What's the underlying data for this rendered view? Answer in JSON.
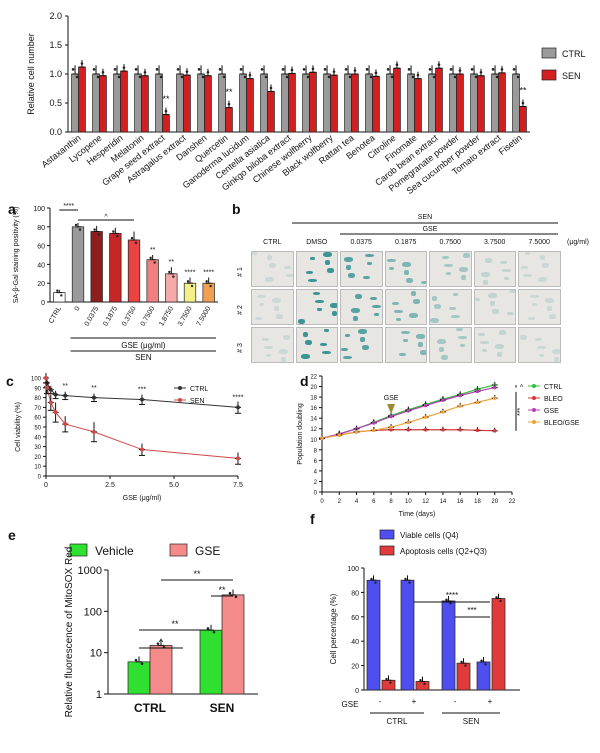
{
  "colors": {
    "ctrl": "#9a9a9a",
    "sen": "#d22020",
    "green": "#2fbf3a",
    "red": "#d9343a",
    "magenta": "#b43fb4",
    "orange": "#f0a23a",
    "vehicle": "#30e030",
    "gse": "#f48a8a",
    "blue": "#4f4ff0",
    "apop": "#e03b3b",
    "teal": "#3aa6a0"
  },
  "chart_data": [
    {
      "panel": "top",
      "type": "bar",
      "ylabel": "Relative cell number",
      "ylim": [
        0,
        2.0
      ],
      "yticks": [
        "0.0",
        "0.5",
        "1.0",
        "1.5",
        "2.0"
      ],
      "legend": [
        "CTRL",
        "SEN"
      ],
      "categories": [
        "Astaxanthin",
        "Lycopene",
        "Hesperidin",
        "Melatonin",
        "Grape seed extract",
        "Astragalus extract",
        "Danshen",
        "Quercetin",
        "Ganoderma lucidum",
        "Centella asiatica",
        "Ginkgo biloba extract",
        "Chinese wolfberry",
        "Black wolfberry",
        "Rattan tea",
        "Benotea",
        "Citroline",
        "Finomate",
        "Carob bean extract",
        "Pomegranate powder",
        "Sea cucumber powder",
        "Tomato extract",
        "Fisetin"
      ],
      "series": [
        {
          "name": "CTRL",
          "values": [
            1.0,
            1.0,
            1.0,
            1.0,
            1.0,
            1.0,
            1.0,
            1.0,
            1.0,
            1.0,
            1.0,
            1.0,
            1.0,
            1.0,
            1.0,
            1.0,
            1.0,
            1.0,
            1.0,
            1.0,
            1.0,
            1.0
          ]
        },
        {
          "name": "SEN",
          "values": [
            1.12,
            0.97,
            1.05,
            0.97,
            0.3,
            0.98,
            0.97,
            0.42,
            0.92,
            0.7,
            1.01,
            1.03,
            0.98,
            1.0,
            0.96,
            1.1,
            0.92,
            1.1,
            1.0,
            0.97,
            1.02,
            0.44
          ]
        }
      ],
      "annotations": [
        {
          "index": 4,
          "text": "**"
        },
        {
          "index": 7,
          "text": "**"
        },
        {
          "index": 21,
          "text": "**"
        }
      ]
    },
    {
      "panel": "a",
      "type": "bar",
      "ylabel": "SA-β-Gal staining positivity (%)",
      "ylim": [
        0,
        100
      ],
      "yticks": [
        "0",
        "20",
        "40",
        "60",
        "80",
        "100"
      ],
      "categories": [
        "CTRL",
        "0",
        "0.0375",
        "0.1875",
        "0.3750",
        "0.7500",
        "1.8750",
        "3.7500",
        "7.5000"
      ],
      "values": [
        10,
        80,
        75,
        73,
        66,
        45,
        30,
        20,
        20
      ],
      "errors": [
        3,
        4,
        6,
        6,
        9,
        5,
        7,
        6,
        6
      ],
      "colors": [
        "#ffffff",
        "#9a9a9a",
        "#8f1f1f",
        "#c62626",
        "#ea4343",
        "#f07f7f",
        "#f5aaaa",
        "#f3f08a",
        "#f0a050"
      ],
      "stars": [
        "",
        "",
        "",
        "",
        "",
        "**",
        "**",
        "****",
        "****"
      ],
      "bracket_labels": [
        "****",
        "^"
      ],
      "xlabel": "GSE (μg/ml)",
      "group_label": "SEN"
    },
    {
      "panel": "c",
      "type": "line",
      "xlabel": "GSE (μg/ml)",
      "ylabel": "Cell viability (%)",
      "xlim": [
        0,
        7.5
      ],
      "ylim": [
        0,
        100
      ],
      "xticks": [
        "0",
        "2.5",
        "5.0",
        "7.5"
      ],
      "yticks": [
        "0",
        "10",
        "20",
        "30",
        "40",
        "50",
        "60",
        "70",
        "80",
        "90",
        "100"
      ],
      "series": [
        {
          "name": "CTRL",
          "color": "#333333",
          "x": [
            0,
            0.0375,
            0.1875,
            0.375,
            0.75,
            1.875,
            3.75,
            7.5
          ],
          "y": [
            100,
            95,
            88,
            83,
            82,
            80,
            78,
            70
          ],
          "err": [
            5,
            4,
            4,
            4,
            4,
            4,
            5,
            6
          ]
        },
        {
          "name": "SEN",
          "color": "#d04848",
          "x": [
            0,
            0.0375,
            0.1875,
            0.375,
            0.75,
            1.875,
            3.75,
            7.5
          ],
          "y": [
            100,
            90,
            75,
            65,
            53,
            45,
            27,
            18
          ],
          "err": [
            5,
            6,
            8,
            10,
            8,
            10,
            6,
            6
          ]
        }
      ],
      "stars": [
        {
          "x": 0.75,
          "text": "**"
        },
        {
          "x": 1.875,
          "text": "**"
        },
        {
          "x": 3.75,
          "text": "***"
        },
        {
          "x": 7.5,
          "text": "****"
        }
      ]
    },
    {
      "panel": "d",
      "type": "line",
      "xlabel": "Time (days)",
      "ylabel": "Population doubling",
      "xlim": [
        0,
        22
      ],
      "ylim": [
        0,
        22
      ],
      "xticks": [
        "0",
        "2",
        "4",
        "6",
        "8",
        "10",
        "12",
        "14",
        "16",
        "18",
        "20",
        "22"
      ],
      "yticks": [
        "0",
        "2",
        "4",
        "6",
        "8",
        "10",
        "12",
        "14",
        "16",
        "18",
        "20",
        "22"
      ],
      "series": [
        {
          "name": "CTRL",
          "color": "#2fbf3a",
          "x": [
            0,
            2,
            4,
            6,
            8,
            10,
            12,
            14,
            16,
            18,
            20
          ],
          "y": [
            10.2,
            11.0,
            12.0,
            13.2,
            14.5,
            15.6,
            16.6,
            17.6,
            18.5,
            19.5,
            20.3
          ]
        },
        {
          "name": "BLEO",
          "color": "#d9343a",
          "x": [
            0,
            2,
            4,
            6,
            8,
            10,
            12,
            14,
            16,
            18,
            20
          ],
          "y": [
            10.2,
            10.8,
            11.4,
            11.7,
            11.8,
            11.8,
            11.8,
            11.8,
            11.8,
            11.7,
            11.6
          ]
        },
        {
          "name": "GSE",
          "color": "#b43fb4",
          "x": [
            0,
            2,
            4,
            6,
            8,
            10,
            12,
            14,
            16,
            18,
            20
          ],
          "y": [
            10.2,
            11.0,
            12.0,
            13.1,
            14.3,
            15.4,
            16.4,
            17.4,
            18.3,
            19.1,
            19.8
          ]
        },
        {
          "name": "BLEO/GSE",
          "color": "#f0a23a",
          "x": [
            0,
            2,
            4,
            6,
            8,
            10,
            12,
            14,
            16,
            18,
            20
          ],
          "y": [
            10.2,
            10.8,
            11.4,
            11.7,
            12.3,
            13.2,
            14.2,
            15.2,
            16.3,
            17.0,
            17.8
          ]
        }
      ],
      "annotation": "GSE",
      "annotation_x": 8,
      "brackets": [
        "^",
        "***"
      ]
    },
    {
      "panel": "e",
      "type": "bar",
      "ylabel": "Relative fluorescence of MitoSOX Red",
      "scale": "log",
      "yticks": [
        "1",
        "10",
        "100",
        "1000"
      ],
      "categories": [
        "CTRL",
        "SEN"
      ],
      "legend": [
        "Vehicle",
        "GSE"
      ],
      "series": [
        {
          "name": "Vehicle",
          "values": [
            6,
            35
          ]
        },
        {
          "name": "GSE",
          "values": [
            15,
            250
          ]
        }
      ],
      "sig": [
        "^",
        "**",
        "**",
        "**"
      ]
    },
    {
      "panel": "f",
      "type": "bar",
      "ylabel": "Cell percentage (%)",
      "ylim": [
        0,
        100
      ],
      "yticks": [
        "0",
        "20",
        "40",
        "60",
        "80",
        "100"
      ],
      "legend": [
        "Viable cells (Q4)",
        "Apoptosis cells (Q2+Q3)"
      ],
      "groups": [
        "CTRL",
        "SEN"
      ],
      "gse_row": [
        "-",
        "+",
        "-",
        "+"
      ],
      "gse_label": "GSE",
      "series": [
        {
          "name": "Viable cells (Q4)",
          "values": [
            90,
            90,
            73,
            23
          ]
        },
        {
          "name": "Apoptosis cells (Q2+Q3)",
          "values": [
            8,
            7,
            22,
            75
          ]
        }
      ],
      "sig": [
        "****",
        "***"
      ]
    }
  ],
  "panel_b": {
    "title": "SEN",
    "subtitle": "GSE",
    "unit": "(μg/ml)",
    "columns": [
      "CTRL",
      "DMSO",
      "0.0375",
      "0.1875",
      "0.7500",
      "3.7500",
      "7.5000"
    ],
    "rows": [
      "# 1",
      "# 2",
      "# 3"
    ]
  },
  "panel_letters": [
    "a",
    "b",
    "c",
    "d",
    "e",
    "f"
  ]
}
